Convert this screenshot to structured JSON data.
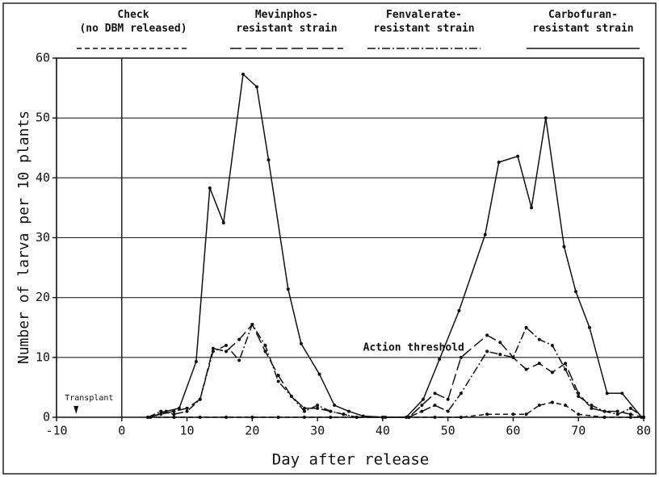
{
  "chart_data": {
    "type": "line",
    "xlabel": "Day after release",
    "ylabel": "Number of larva per 10 plants",
    "xlim": [
      -10,
      80
    ],
    "xticks": [
      -10,
      0,
      10,
      20,
      30,
      40,
      50,
      60,
      70,
      80
    ],
    "ylim": [
      0,
      60
    ],
    "yticks": [
      0,
      10,
      20,
      30,
      40,
      50,
      60
    ],
    "grid": true,
    "annotations": [
      {
        "text": "Action threshold",
        "x": 37,
        "y": 10
      },
      {
        "text": "Transplant",
        "x": -7,
        "y": 0
      }
    ],
    "series": [
      {
        "name": "Check\n(no DBM released)",
        "color": "#111111",
        "dash": "6 4",
        "x": [
          4,
          8,
          12,
          16,
          20,
          24,
          28,
          32,
          36,
          40,
          44,
          48,
          52,
          56,
          60,
          62,
          64,
          66,
          68,
          70,
          74,
          78,
          80
        ],
        "values": [
          0,
          0,
          0,
          0,
          0,
          0,
          0,
          0,
          0,
          0,
          0,
          0,
          0,
          0.5,
          0.5,
          0.5,
          2,
          2.5,
          2,
          0.5,
          0,
          0,
          0
        ]
      },
      {
        "name": "Mevinphos-\nresistant strain",
        "color": "#111111",
        "dash": "14 5",
        "x": [
          4,
          6,
          8,
          10,
          12,
          14,
          16,
          18,
          20,
          22,
          24,
          26,
          28,
          30,
          32,
          34,
          36,
          40,
          44,
          46,
          48,
          50,
          52,
          56,
          58,
          60,
          62,
          64,
          66,
          68,
          70,
          72,
          74,
          76,
          78,
          80
        ],
        "values": [
          0,
          0.5,
          1,
          1.5,
          3,
          11.5,
          11,
          13,
          15.5,
          11,
          7,
          3.5,
          1.5,
          1.5,
          1,
          0.5,
          0,
          0,
          0,
          2,
          4,
          3,
          10,
          13.7,
          12.5,
          10,
          8,
          9,
          7.5,
          9,
          4,
          1.5,
          1,
          1,
          0.5,
          0
        ]
      },
      {
        "name": "Fenvalerate-\nresistant strain",
        "color": "#111111",
        "dash": "10 3 2 3",
        "x": [
          4,
          6,
          8,
          10,
          12,
          14,
          16,
          18,
          20,
          22,
          24,
          26,
          28,
          30,
          32,
          34,
          36,
          40,
          44,
          46,
          48,
          50,
          52,
          56,
          58,
          60,
          62,
          64,
          66,
          68,
          70,
          72,
          74,
          76,
          78,
          80
        ],
        "values": [
          0,
          1,
          0.5,
          1,
          3,
          11,
          12,
          9.5,
          15.5,
          12,
          6,
          3.5,
          1,
          2,
          1,
          0.5,
          0,
          0,
          0,
          1,
          2,
          1,
          4,
          11,
          10.5,
          10,
          15,
          13,
          12,
          8,
          3.5,
          2,
          1,
          0.5,
          1.5,
          0
        ]
      },
      {
        "name": "Carbofuran-\nresistant strain",
        "color": "#111111",
        "dash": "none",
        "x": [
          4.4,
          6.8,
          8.8,
          11.4,
          13.5,
          15.6,
          18.6,
          20.7,
          22.5,
          25.5,
          27.5,
          30.3,
          32.6,
          34.8,
          37,
          40.4,
          43.6,
          46.2,
          48.7,
          51.7,
          55.7,
          57.8,
          60.7,
          62.8,
          65,
          67.8,
          69.6,
          71.7,
          74.4,
          76.7,
          79.7
        ],
        "values": [
          0,
          1,
          1.5,
          9.3,
          38.3,
          32.5,
          57.3,
          55.2,
          43,
          21.4,
          12.3,
          7.2,
          2,
          1,
          0.2,
          0,
          0,
          3,
          9.7,
          17.8,
          30.5,
          42.6,
          43.6,
          35,
          50,
          28.5,
          21,
          15,
          4,
          4,
          0
        ]
      }
    ]
  }
}
